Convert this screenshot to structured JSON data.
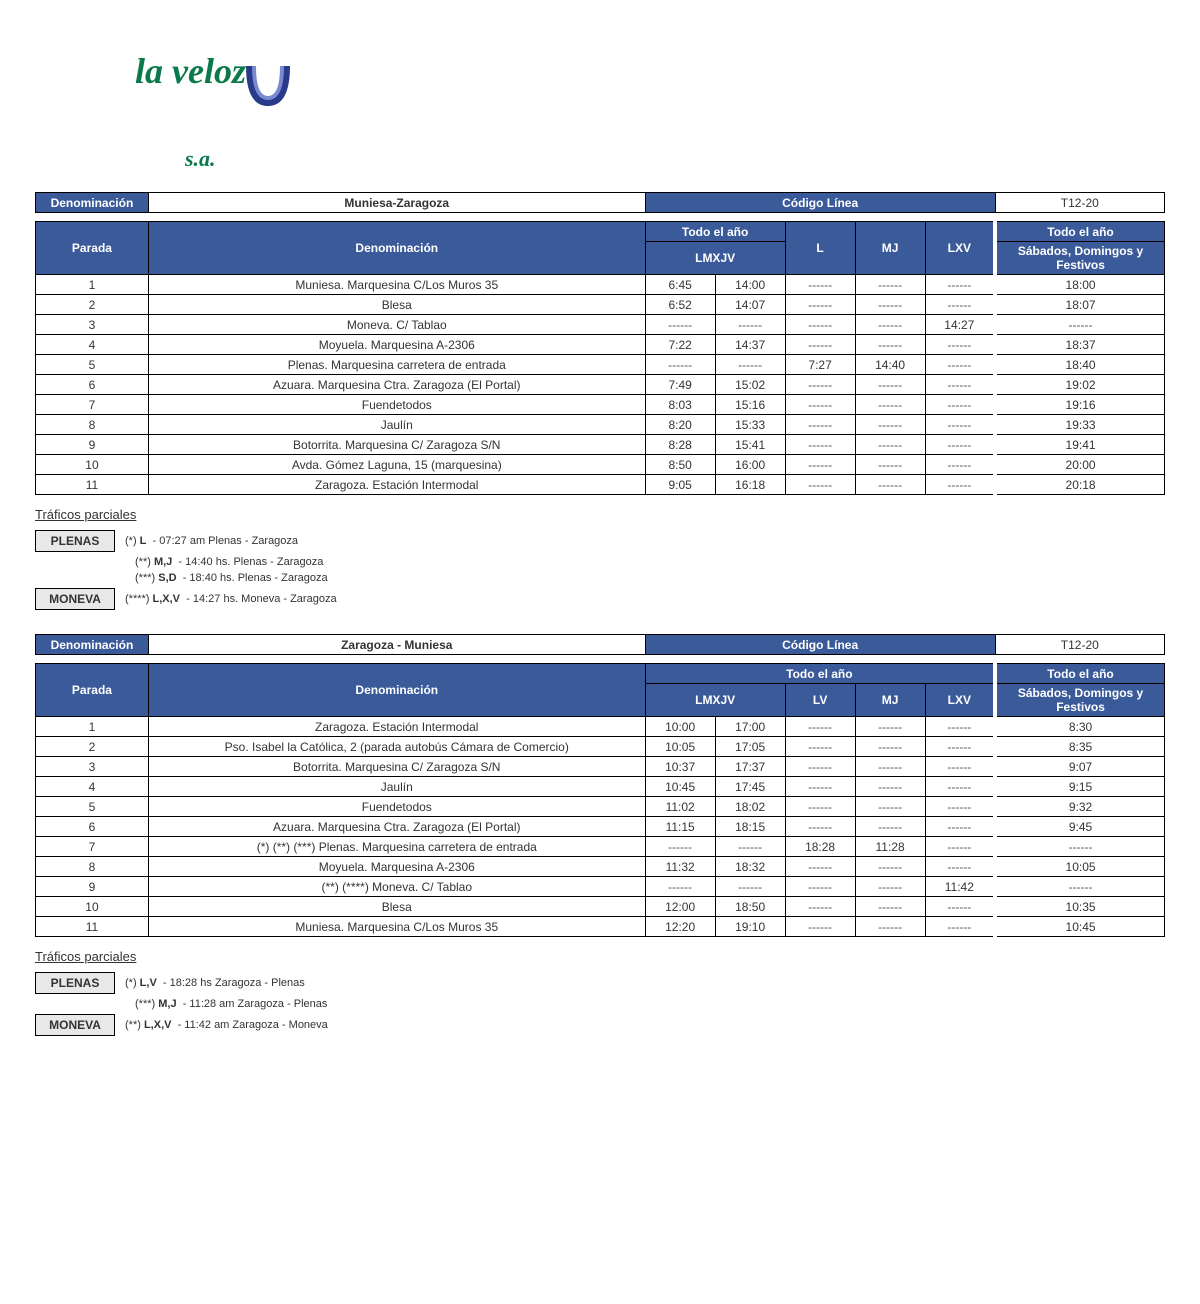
{
  "logo": {
    "text": "la veloz",
    "suffix": "s.a."
  },
  "colors": {
    "header_bg": "#3a5a9a",
    "header_text": "#ffffff",
    "border": "#000000",
    "logo_green": "#0a7a4a",
    "logo_blue": "#2a3a8a",
    "box_bg": "#e8e8e8"
  },
  "labels": {
    "denominacion": "Denominación",
    "codigo_linea": "Código Línea",
    "parada": "Parada",
    "todo_el_ano": "Todo el año",
    "sabados": "Sábados, Domingos y Festivos",
    "traficos_parciales": "Tráficos parciales"
  },
  "route1": {
    "title": "Muniesa-Zaragoza",
    "code": "T12-20",
    "day_cols": [
      "LMXJV",
      "",
      "L",
      "MJ",
      "LXV"
    ],
    "stops": [
      {
        "n": "1",
        "name": "Muniesa. Marquesina C/Los Muros 35",
        "t": [
          "6:45",
          "14:00",
          "------",
          "------",
          "------",
          "18:00"
        ]
      },
      {
        "n": "2",
        "name": "Blesa",
        "t": [
          "6:52",
          "14:07",
          "------",
          "------",
          "------",
          "18:07"
        ]
      },
      {
        "n": "3",
        "name": "Moneva. C/ Tablao",
        "t": [
          "------",
          "------",
          "------",
          "------",
          "14:27",
          "------"
        ]
      },
      {
        "n": "4",
        "name": "Moyuela. Marquesina A-2306",
        "t": [
          "7:22",
          "14:37",
          "------",
          "------",
          "------",
          "18:37"
        ]
      },
      {
        "n": "5",
        "name": "Plenas. Marquesina carretera de entrada",
        "t": [
          "------",
          "------",
          "7:27",
          "14:40",
          "------",
          "18:40"
        ]
      },
      {
        "n": "6",
        "name": "Azuara. Marquesina Ctra. Zaragoza (El Portal)",
        "t": [
          "7:49",
          "15:02",
          "------",
          "------",
          "------",
          "19:02"
        ]
      },
      {
        "n": "7",
        "name": "Fuendetodos",
        "t": [
          "8:03",
          "15:16",
          "------",
          "------",
          "------",
          "19:16"
        ]
      },
      {
        "n": "8",
        "name": "Jaulín",
        "t": [
          "8:20",
          "15:33",
          "------",
          "------",
          "------",
          "19:33"
        ]
      },
      {
        "n": "9",
        "name": "Botorrita. Marquesina C/ Zaragoza S/N",
        "t": [
          "8:28",
          "15:41",
          "------",
          "------",
          "------",
          "19:41"
        ]
      },
      {
        "n": "10",
        "name": "Avda. Gómez Laguna, 15 (marquesina)",
        "t": [
          "8:50",
          "16:00",
          "------",
          "------",
          "------",
          "20:00"
        ]
      },
      {
        "n": "11",
        "name": "Zaragoza. Estación Intermodal",
        "t": [
          "9:05",
          "16:18",
          "------",
          "------",
          "------",
          "20:18"
        ]
      }
    ],
    "traficos": [
      {
        "box": "PLENAS",
        "mark": "(*)",
        "days": "L",
        "text": "- 07:27 am Plenas - Zaragoza"
      },
      {
        "box": "",
        "mark": "(**)",
        "days": "M,J",
        "text": "- 14:40 hs. Plenas - Zaragoza"
      },
      {
        "box": "",
        "mark": "(***)",
        "days": "S,D",
        "text": "- 18:40 hs. Plenas - Zaragoza"
      },
      {
        "box": "MONEVA",
        "mark": "(****)",
        "days": "L,X,V",
        "text": "- 14:27 hs. Moneva - Zaragoza"
      }
    ]
  },
  "route2": {
    "title": "Zaragoza - Muniesa",
    "code": "T12-20",
    "day_group": "Todo el año",
    "day_cols": [
      "LMXJV",
      "",
      "LV",
      "MJ",
      "LXV"
    ],
    "stops": [
      {
        "n": "1",
        "name": "Zaragoza. Estación Intermodal",
        "t": [
          "10:00",
          "17:00",
          "------",
          "------",
          "------",
          "8:30"
        ]
      },
      {
        "n": "2",
        "name": "Pso. Isabel la Católica, 2 (parada autobús Cámara de Comercio)",
        "t": [
          "10:05",
          "17:05",
          "------",
          "------",
          "------",
          "8:35"
        ]
      },
      {
        "n": "3",
        "name": "Botorrita. Marquesina C/ Zaragoza S/N",
        "t": [
          "10:37",
          "17:37",
          "------",
          "------",
          "------",
          "9:07"
        ]
      },
      {
        "n": "4",
        "name": "Jaulín",
        "t": [
          "10:45",
          "17:45",
          "------",
          "------",
          "------",
          "9:15"
        ]
      },
      {
        "n": "5",
        "name": "Fuendetodos",
        "t": [
          "11:02",
          "18:02",
          "------",
          "------",
          "------",
          "9:32"
        ]
      },
      {
        "n": "6",
        "name": "Azuara. Marquesina Ctra. Zaragoza (El Portal)",
        "t": [
          "11:15",
          "18:15",
          "------",
          "------",
          "------",
          "9:45"
        ]
      },
      {
        "n": "7",
        "name": "(*) (**) (***) Plenas. Marquesina carretera de entrada",
        "t": [
          "------",
          "------",
          "18:28",
          "11:28",
          "------",
          "------"
        ]
      },
      {
        "n": "8",
        "name": "Moyuela. Marquesina A-2306",
        "t": [
          "11:32",
          "18:32",
          "------",
          "------",
          "------",
          "10:05"
        ]
      },
      {
        "n": "9",
        "name": "(**) (****) Moneva. C/ Tablao",
        "t": [
          "------",
          "------",
          "------",
          "------",
          "11:42",
          "------"
        ]
      },
      {
        "n": "10",
        "name": "Blesa",
        "t": [
          "12:00",
          "18:50",
          "------",
          "------",
          "------",
          "10:35"
        ]
      },
      {
        "n": "11",
        "name": "Muniesa. Marquesina C/Los Muros 35",
        "t": [
          "12:20",
          "19:10",
          "------",
          "------",
          "------",
          "10:45"
        ]
      }
    ],
    "traficos": [
      {
        "box": "PLENAS",
        "mark": "(*)",
        "days": "L,V",
        "text": "- 18:28 hs Zaragoza - Plenas"
      },
      {
        "box": "",
        "mark": "(***)",
        "days": "M,J",
        "text": "- 11:28 am Zaragoza - Plenas"
      },
      {
        "box": "MONEVA",
        "mark": "(**)",
        "days": "L,X,V",
        "text": "- 11:42 am Zaragoza - Moneva"
      }
    ]
  }
}
